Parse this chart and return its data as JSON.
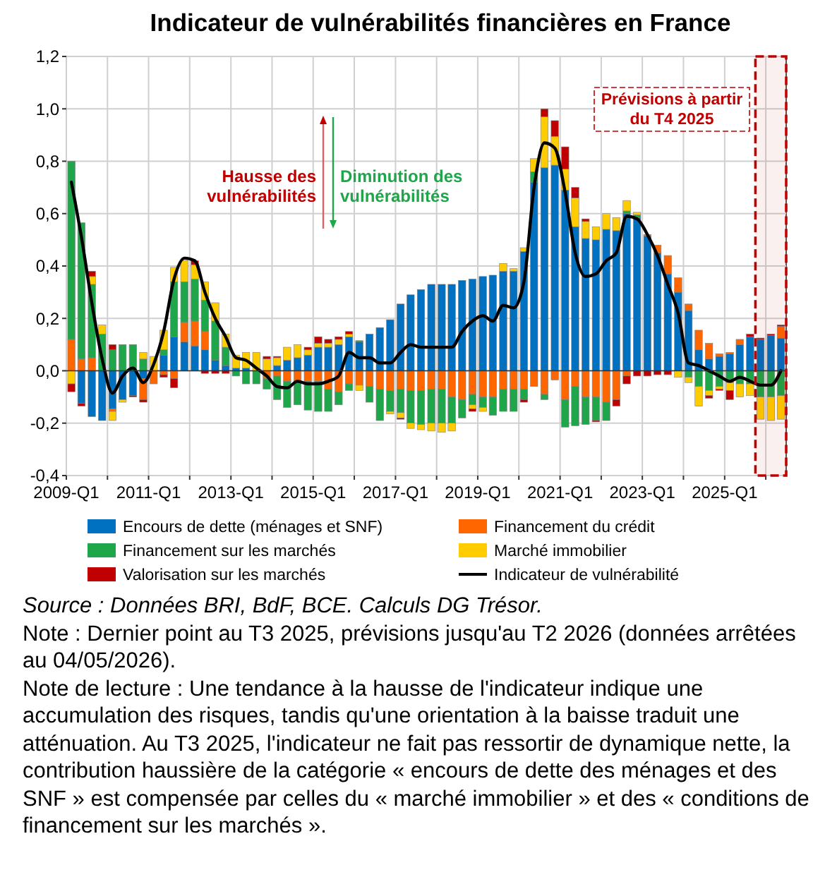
{
  "chart_data": {
    "type": "bar",
    "stacked": true,
    "title": "Indicateur de vulnérabilités financières en France",
    "x": [
      "2009-02-15",
      "2009-05-15",
      "2009-08-15",
      "2009-11-15",
      "2010-02-15",
      "2010-05-15",
      "2010-08-15",
      "2010-11-15",
      "2011-02-15",
      "2011-05-15",
      "2011-08-15",
      "2011-11-15",
      "2012-02-15",
      "2012-05-15",
      "2012-08-15",
      "2012-11-15",
      "2013-02-15",
      "2013-05-15",
      "2013-08-15",
      "2013-11-15",
      "2014-02-15",
      "2014-05-15",
      "2014-08-15",
      "2014-11-15",
      "2015-02-15",
      "2015-05-15",
      "2015-08-15",
      "2015-11-15",
      "2016-02-15",
      "2016-05-15",
      "2016-08-15",
      "2016-11-15",
      "2017-02-15",
      "2017-05-15",
      "2017-08-15",
      "2017-11-15",
      "2018-02-15",
      "2018-05-15",
      "2018-08-15",
      "2018-11-15",
      "2019-02-15",
      "2019-05-15",
      "2019-08-15",
      "2019-11-15",
      "2020-02-15",
      "2020-05-15",
      "2020-08-15",
      "2020-11-15",
      "2021-02-15",
      "2021-05-15",
      "2021-08-15",
      "2021-11-15",
      "2022-02-15",
      "2022-05-15",
      "2022-08-15",
      "2022-11-15",
      "2023-02-15",
      "2023-05-15",
      "2023-08-15",
      "2023-11-15",
      "2024-02-15",
      "2024-05-15",
      "2024-08-15",
      "2024-11-15",
      "2025-02-15",
      "2025-05-15",
      "2025-08-15",
      "2025-11-15",
      "2026-02-15",
      "2026-05-15"
    ],
    "series": [
      {
        "name": "Encours de dette (ménages et SNF)",
        "color": "#0070c0",
        "values": [
          0,
          -0.125,
          -0.175,
          -0.19,
          -0.145,
          -0.11,
          -0.095,
          -0.03,
          0,
          0.06,
          0.13,
          0.11,
          0.095,
          0.08,
          0.04,
          0.02,
          0.01,
          0.01,
          null,
          0,
          0.02,
          0.04,
          0.05,
          0.06,
          0.09,
          0.09,
          0.1,
          0.13,
          0.11,
          0.14,
          0.165,
          0.195,
          0.255,
          0.29,
          0.31,
          0.33,
          0.33,
          0.33,
          0.345,
          0.35,
          0.36,
          0.365,
          0.38,
          0.38,
          0.455,
          0.72,
          0.775,
          0.785,
          0.69,
          0.55,
          0.505,
          0.5,
          0.54,
          0.535,
          0.6,
          0.585,
          0.515,
          0.45,
          0.37,
          0.3,
          0.23,
          0.08,
          0.045,
          0.055,
          0.065,
          0.1,
          0.13,
          0.12,
          0.135,
          0.125
        ]
      },
      {
        "name": "Financement du crédit",
        "color": "#ff6600",
        "values": [
          0.12,
          0.045,
          0.05,
          0,
          -0.01,
          null,
          0,
          -0.08,
          -0.05,
          -0.015,
          -0.03,
          0.075,
          0.095,
          0.07,
          0,
          0,
          0,
          0,
          null,
          -0.03,
          -0.02,
          -0.04,
          -0.04,
          -0.04,
          -0.04,
          -0.07,
          -0.08,
          -0.05,
          -0.055,
          -0.06,
          -0.07,
          -0.075,
          -0.07,
          -0.075,
          -0.075,
          -0.07,
          -0.07,
          -0.1,
          -0.11,
          -0.09,
          -0.1,
          -0.1,
          -0.07,
          -0.07,
          -0.07,
          -0.06,
          -0.09,
          -0.035,
          -0.11,
          -0.06,
          -0.1,
          -0.1,
          -0.12,
          -0.11,
          -0.02,
          0,
          0.005,
          0.03,
          0.07,
          0.055,
          0.025,
          0.075,
          0.06,
          0.01,
          0.005,
          0.02,
          0,
          0,
          0,
          0.045
        ]
      },
      {
        "name": "Financement sur les marchés",
        "color": "#1fa64a",
        "values": [
          0.68,
          0.52,
          0.28,
          0.14,
          0.08,
          0.1,
          0.1,
          0.045,
          0,
          0.02,
          0.21,
          0.155,
          0.16,
          0.12,
          0.15,
          0.07,
          -0.02,
          -0.05,
          -0.05,
          -0.04,
          -0.09,
          -0.1,
          -0.09,
          -0.11,
          -0.115,
          -0.085,
          -0.05,
          -0.025,
          0.005,
          -0.06,
          -0.12,
          -0.08,
          -0.09,
          -0.125,
          -0.13,
          -0.13,
          -0.13,
          -0.1,
          -0.07,
          -0.04,
          -0.04,
          -0.07,
          -0.085,
          -0.085,
          -0.04,
          0.04,
          -0.02,
          0,
          -0.105,
          -0.15,
          -0.105,
          -0.09,
          -0.07,
          0,
          0.01,
          0.01,
          0,
          0,
          0,
          0,
          -0.025,
          -0.06,
          -0.075,
          -0.06,
          -0.045,
          -0.05,
          -0.05,
          -0.1,
          -0.1,
          -0.095
        ]
      },
      {
        "name": "Marché immobilier",
        "color": "#ffcc00",
        "values": [
          -0.05,
          0,
          0.03,
          0.035,
          -0.035,
          -0.01,
          0,
          0.025,
          0.055,
          0.075,
          0.055,
          0.08,
          0.055,
          0.07,
          0.07,
          0.05,
          0.05,
          0.06,
          0.07,
          0.045,
          0.03,
          0.05,
          0.05,
          0.02,
          0.015,
          0.015,
          0.02,
          0.01,
          -0.02,
          0,
          0,
          -0.01,
          -0.02,
          -0.02,
          -0.02,
          -0.03,
          -0.035,
          -0.03,
          0,
          -0.015,
          -0.015,
          0,
          0.03,
          0.01,
          0.015,
          0.05,
          0.195,
          0.11,
          0.08,
          0.11,
          0.065,
          0.05,
          0.06,
          0.05,
          0.04,
          0.01,
          0,
          0,
          0,
          -0.025,
          -0.02,
          -0.075,
          -0.02,
          -0.01,
          -0.03,
          -0.05,
          -0.045,
          -0.085,
          -0.09,
          -0.09
        ]
      },
      {
        "name": "Valorisation sur les marchés",
        "color": "#c00000",
        "values": [
          -0.03,
          -0.01,
          0.02,
          0,
          0.02,
          0,
          -0.005,
          -0.01,
          0,
          -0.01,
          -0.035,
          0,
          0.015,
          -0.01,
          -0.01,
          -0.01,
          0,
          0,
          0,
          0.01,
          0.005,
          0,
          0,
          0.01,
          0.025,
          0.015,
          0.01,
          0.01,
          0,
          0,
          0,
          0,
          -0.005,
          0,
          0,
          0,
          0,
          0,
          0,
          -0.01,
          0,
          0,
          0,
          0,
          -0.01,
          0,
          0.03,
          0.06,
          0.085,
          0.04,
          0.01,
          -0.005,
          0,
          -0.025,
          -0.03,
          -0.02,
          -0.02,
          -0.015,
          -0.015,
          0,
          0,
          0,
          -0.01,
          -0.005,
          -0.035,
          0,
          0.01,
          0.005,
          0.005,
          0.005
        ]
      },
      {
        "name": "Indicateur de vulnérabilité",
        "type": "line",
        "color": "#000000",
        "values": [
          0.72,
          0.51,
          0.26,
          0.045,
          -0.085,
          -0.02,
          0.01,
          -0.045,
          0.025,
          0.15,
          0.35,
          0.43,
          0.42,
          0.3,
          0.2,
          0.13,
          0.05,
          0.04,
          0.01,
          -0.02,
          -0.06,
          -0.065,
          -0.04,
          -0.05,
          -0.05,
          -0.04,
          -0.02,
          0.07,
          0.05,
          0.05,
          0.03,
          0.03,
          0.07,
          0.1,
          0.09,
          0.09,
          0.09,
          0.09,
          0.15,
          0.19,
          0.21,
          0.19,
          0.25,
          0.24,
          0.34,
          0.7,
          0.87,
          0.85,
          0.68,
          0.45,
          0.36,
          0.37,
          0.42,
          0.45,
          0.59,
          0.58,
          0.52,
          0.44,
          0.33,
          0.22,
          0.03,
          0.02,
          0,
          -0.02,
          -0.04,
          -0.025,
          -0.04,
          -0.055,
          -0.055,
          0
        ]
      }
    ],
    "xlim": [
      "2009-01-01",
      "2026-07-01"
    ],
    "xticks": [
      {
        "value": "2009-01-01",
        "label": "2009-Q1"
      },
      {
        "value": "2010-01-01",
        "label": null
      },
      {
        "value": "2011-01-01",
        "label": "2011-Q1"
      },
      {
        "value": "2012-01-01",
        "label": null
      },
      {
        "value": "2013-01-01",
        "label": "2013-Q1"
      },
      {
        "value": "2014-01-01",
        "label": null
      },
      {
        "value": "2015-01-01",
        "label": "2015-Q1"
      },
      {
        "value": "2016-01-01",
        "label": null
      },
      {
        "value": "2017-01-01",
        "label": "2017-Q1"
      },
      {
        "value": "2018-01-01",
        "label": null
      },
      {
        "value": "2019-01-01",
        "label": "2019-Q1"
      },
      {
        "value": "2020-01-01",
        "label": null
      },
      {
        "value": "2021-01-01",
        "label": "2021-Q1"
      },
      {
        "value": "2022-01-01",
        "label": null
      },
      {
        "value": "2023-01-01",
        "label": "2023-Q1"
      },
      {
        "value": "2024-01-01",
        "label": null
      },
      {
        "value": "2025-01-01",
        "label": "2025-Q1"
      },
      {
        "value": "2026-01-01",
        "label": null
      }
    ],
    "ylim": [
      -0.4,
      1.2
    ],
    "yticks": [
      {
        "value": -0.4,
        "label": "-0,4"
      },
      {
        "value": -0.2,
        "label": "-0,2"
      },
      {
        "value": 0,
        "label": "0,0"
      },
      {
        "value": 0.2,
        "label": "0,2"
      },
      {
        "value": 0.4,
        "label": "0,4"
      },
      {
        "value": 0.6,
        "label": "0,6"
      },
      {
        "value": 0.8,
        "label": "0,8"
      },
      {
        "value": 1,
        "label": "1,0"
      },
      {
        "value": 1.2,
        "label": "1,2"
      }
    ],
    "grid": true,
    "legend": "bottom",
    "line_style": "solid",
    "bands": [
      {
        "axis": "x",
        "from": "2025-10-01",
        "to": "2026-07-01",
        "label": "Prévisions à partir\ndu T4 2025",
        "color": "#c00000"
      }
    ],
    "annotations": [
      "Hausse des\nvulnérabilités",
      "Diminution des\nvulnérabilités",
      "Source : Données BRI, BdF, BCE. Calculs DG Trésor.",
      "Note : Dernier point au T3 2025, prévisions jusqu'au T2 2026 (données arrêtées au 04/05/2026).",
      "Note de lecture : Une tendance à la hausse de l'indicateur indique une accumulation des risques, tandis qu'une orientation à la baisse traduit une atténuation. Au T3 2025, l'indicateur ne fait pas ressortir de dynamique nette, la contribution haussière de la catégorie « encours de dette des ménages et des SNF » est compensée par celles du « marché immobilier » et des « conditions de financement sur les marchés »."
    ]
  }
}
